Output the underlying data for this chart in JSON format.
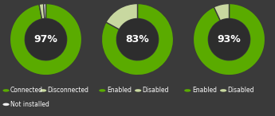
{
  "background_color": "#3a3a3a",
  "inner_bg": "#2d2d2d",
  "charts": [
    {
      "segments": [
        {
          "value": 97,
          "color": "#5aab00"
        },
        {
          "value": 2,
          "color": "#c8d8a0"
        },
        {
          "value": 1,
          "color": "#f0f0f0"
        }
      ],
      "label": "97%",
      "legend": [
        {
          "color": "#5aab00",
          "label": "Connected"
        },
        {
          "color": "#c8d8a0",
          "label": "Disconnected"
        },
        {
          "color": "#f0f0f0",
          "label": "Not installed"
        }
      ],
      "legend_rows": 2
    },
    {
      "segments": [
        {
          "value": 83,
          "color": "#5aab00"
        },
        {
          "value": 17,
          "color": "#c8d8a0"
        }
      ],
      "label": "83%",
      "legend": [
        {
          "color": "#5aab00",
          "label": "Enabled"
        },
        {
          "color": "#c8d8a0",
          "label": "Disabled"
        }
      ],
      "legend_rows": 1
    },
    {
      "segments": [
        {
          "value": 93,
          "color": "#5aab00"
        },
        {
          "value": 7,
          "color": "#c8d8a0"
        }
      ],
      "label": "93%",
      "legend": [
        {
          "color": "#5aab00",
          "label": "Enabled"
        },
        {
          "color": "#c8d8a0",
          "label": "Disabled"
        }
      ],
      "legend_rows": 1
    }
  ],
  "text_color": "#ffffff",
  "label_fontsize": 9,
  "legend_fontsize": 5.5,
  "R": 1.0,
  "r": 0.58
}
